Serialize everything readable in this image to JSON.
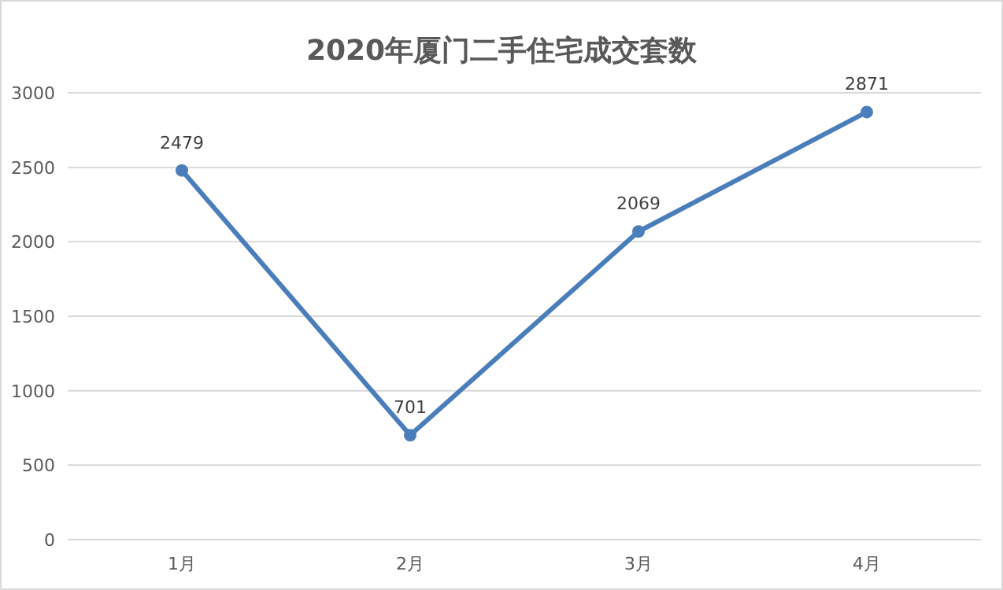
{
  "chart_data": {
    "type": "line",
    "title": "2020年厦门二手住宅成交套数",
    "categories": [
      "1月",
      "2月",
      "3月",
      "4月"
    ],
    "series": [
      {
        "color": "#4a7ebb",
        "values": [
          2479,
          701,
          2069,
          2871
        ]
      }
    ],
    "ylim": [
      0,
      3000
    ],
    "yticks": [
      0,
      500,
      1000,
      1500,
      2000,
      2500,
      3000
    ],
    "grid": "y",
    "marker": "circle",
    "line_style": "solid",
    "data_labels": true
  }
}
